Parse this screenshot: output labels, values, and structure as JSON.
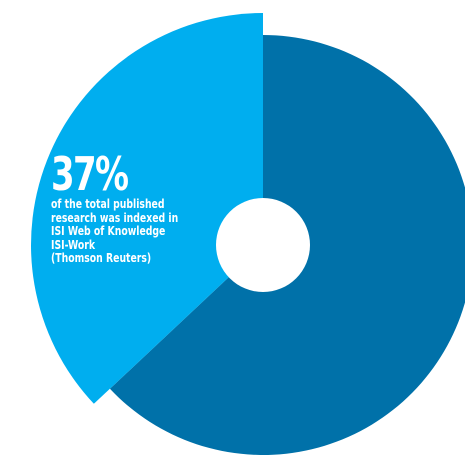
{
  "chart_data": {
    "type": "pie",
    "style": "donut",
    "slices": [
      {
        "name": "",
        "value": 37,
        "color": "#00AEEF"
      },
      {
        "name": "",
        "value": 63,
        "color": "#0071A9"
      }
    ],
    "annotation": {
      "percent": "37%",
      "lines": [
        "of the total published",
        "research was indexed in",
        "ISI Web of Knowledge",
        "ISI-Work",
        "(Thomson Reuters)"
      ]
    }
  }
}
